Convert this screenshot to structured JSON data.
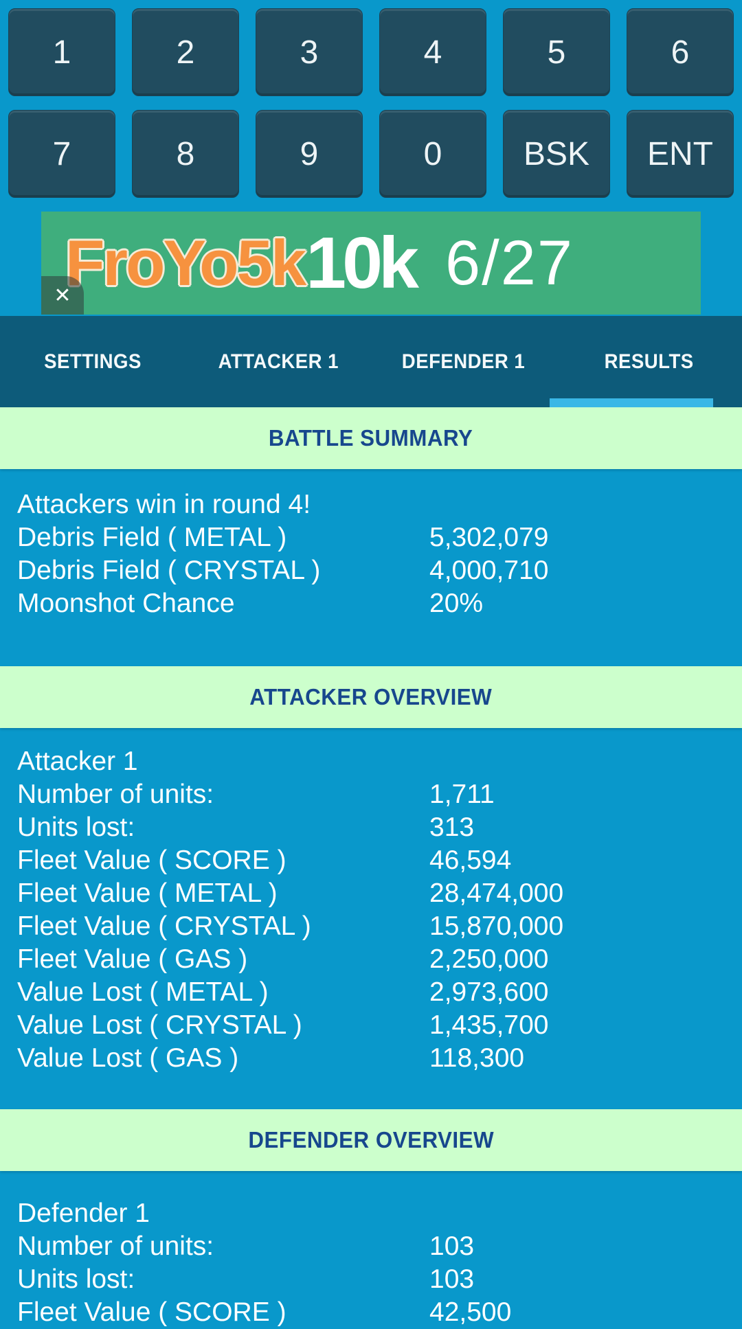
{
  "keypad": {
    "keys": [
      "1",
      "2",
      "3",
      "4",
      "5",
      "6",
      "7",
      "8",
      "9",
      "0",
      "BSK",
      "ENT"
    ]
  },
  "banner": {
    "brand_froyo": "FroYo",
    "brand_5k": "5k",
    "brand_10k": "10k",
    "date": "6/27",
    "close_glyph": "✕"
  },
  "tabs": {
    "items": [
      {
        "label": "SETTINGS"
      },
      {
        "label": "ATTACKER 1"
      },
      {
        "label": "DEFENDER 1"
      },
      {
        "label": "RESULTS"
      }
    ],
    "active": "RESULTS"
  },
  "sections": [
    {
      "title": "BATTLE SUMMARY",
      "rows": [
        {
          "label": "Attackers win in round 4!",
          "value": ""
        },
        {
          "label": "Debris Field ( METAL )",
          "value": "5,302,079"
        },
        {
          "label": "Debris Field ( CRYSTAL )",
          "value": "4,000,710"
        },
        {
          "label": "Moonshot Chance",
          "value": "20%"
        }
      ]
    },
    {
      "title": "ATTACKER OVERVIEW",
      "rows": [
        {
          "label": "Attacker 1",
          "value": ""
        },
        {
          "label": "Number of units:",
          "value": "1,711"
        },
        {
          "label": "Units lost:",
          "value": "313"
        },
        {
          "label": "Fleet Value ( SCORE )",
          "value": "46,594"
        },
        {
          "label": "Fleet Value ( METAL )",
          "value": "28,474,000"
        },
        {
          "label": "Fleet Value ( CRYSTAL )",
          "value": "15,870,000"
        },
        {
          "label": "Fleet Value ( GAS )",
          "value": "2,250,000"
        },
        {
          "label": "Value Lost ( METAL )",
          "value": "2,973,600"
        },
        {
          "label": "Value Lost ( CRYSTAL )",
          "value": "1,435,700"
        },
        {
          "label": "Value Lost ( GAS )",
          "value": "118,300"
        }
      ]
    },
    {
      "title": "DEFENDER OVERVIEW",
      "rows": [
        {
          "label": "Defender 1",
          "value": ""
        },
        {
          "label": "Number of units:",
          "value": "103"
        },
        {
          "label": "Units lost:",
          "value": "103"
        },
        {
          "label": "Fleet Value ( SCORE )",
          "value": "42,500"
        }
      ]
    }
  ],
  "colors": {
    "background": "#0998cb",
    "keypad_key": "#214c5f",
    "tab_bar": "#0d5b7a",
    "tab_indicator": "#3ab7e6",
    "section_header_bg": "#ccffcc",
    "section_header_text": "#17478d",
    "row_text": "#fcfeff",
    "banner_bg": "#3fae7d",
    "banner_orange": "#f6923f"
  }
}
